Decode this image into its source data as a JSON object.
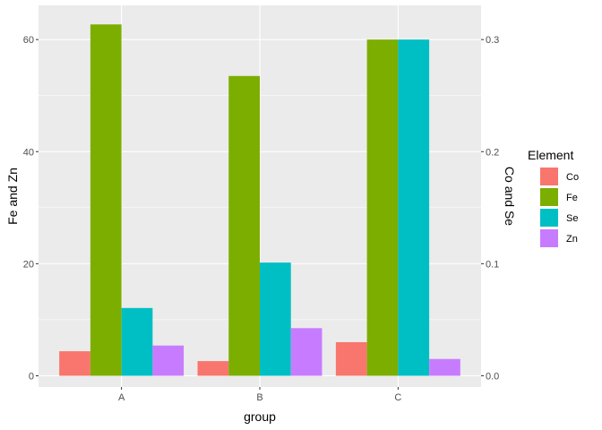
{
  "chart_data": {
    "type": "bar",
    "categories": [
      "A",
      "B",
      "C"
    ],
    "series": [
      {
        "name": "Co",
        "axis": "right",
        "color": "#F8766D",
        "values": [
          0.0219,
          0.0131,
          0.03
        ]
      },
      {
        "name": "Fe",
        "axis": "left",
        "color": "#7CAE00",
        "values": [
          62.7,
          53.5,
          60.0
        ]
      },
      {
        "name": "Se",
        "axis": "right",
        "color": "#00BFC4",
        "values": [
          0.0605,
          0.101,
          0.3
        ]
      },
      {
        "name": "Zn",
        "axis": "left",
        "color": "#C77CFF",
        "values": [
          5.4,
          8.5,
          3.0
        ]
      }
    ],
    "xlabel": "group",
    "ylabel_left": "Fe and Zn",
    "ylabel_right": "Co and Se",
    "ylim_left": [
      -2,
      66.1
    ],
    "ylim_right": [
      -0.01,
      0.3305
    ],
    "yticks_left": [
      "0",
      "20",
      "40",
      "60"
    ],
    "yticks_right": [
      "0.0",
      "0.1",
      "0.2",
      "0.3"
    ],
    "legend": {
      "title": "Element",
      "position": "right"
    },
    "grid": true,
    "panel_background": "#EBEBEB"
  }
}
